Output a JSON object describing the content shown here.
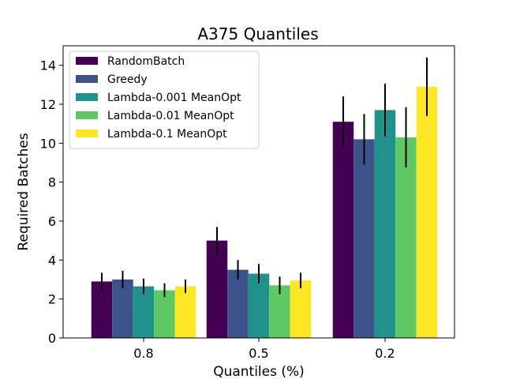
{
  "chart_data": {
    "type": "bar",
    "title": "A375 Quantiles",
    "xlabel": "Quantiles (%)",
    "ylabel": "Required Batches",
    "categories": [
      "0.8",
      "0.5",
      "0.2"
    ],
    "ylim": [
      0,
      15
    ],
    "yticks": [
      0,
      2,
      4,
      6,
      8,
      10,
      12,
      14
    ],
    "legend_position": "top-left",
    "grid": false,
    "series": [
      {
        "name": "RandomBatch",
        "color": "#440154",
        "values": [
          2.9,
          5.0,
          11.1
        ],
        "errors": [
          0.45,
          0.7,
          1.3
        ]
      },
      {
        "name": "Greedy",
        "color": "#3b528b",
        "values": [
          3.0,
          3.5,
          10.2
        ],
        "errors": [
          0.45,
          0.5,
          1.3
        ]
      },
      {
        "name": "Lambda-0.001 MeanOpt",
        "color": "#21918c",
        "values": [
          2.65,
          3.3,
          11.7
        ],
        "errors": [
          0.4,
          0.5,
          1.35
        ]
      },
      {
        "name": "Lambda-0.01 MeanOpt",
        "color": "#5ec962",
        "values": [
          2.45,
          2.7,
          10.3
        ],
        "errors": [
          0.35,
          0.45,
          1.55
        ]
      },
      {
        "name": "Lambda-0.1 MeanOpt",
        "color": "#fde725",
        "values": [
          2.65,
          2.95,
          12.9
        ],
        "errors": [
          0.35,
          0.4,
          1.5
        ]
      }
    ]
  }
}
